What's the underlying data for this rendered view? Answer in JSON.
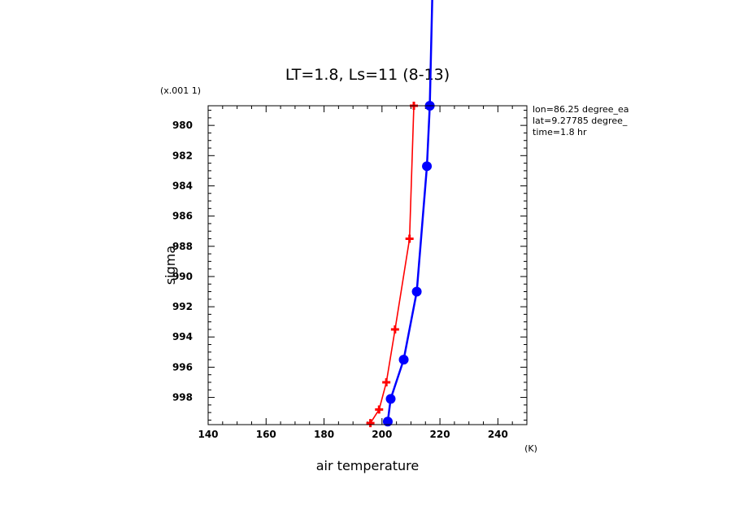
{
  "chart_data": {
    "type": "line",
    "title": "LT=1.8, Ls=11 (8-13)",
    "xlabel": "air temperature",
    "ylabel": "sigma",
    "x_units": "(K)",
    "y_scale_note": "(x.001 1)",
    "xlim": [
      140,
      250
    ],
    "ylim": [
      999.8,
      978.7
    ],
    "x_ticks": [
      140,
      160,
      180,
      200,
      220,
      240
    ],
    "y_ticks": [
      980,
      982,
      984,
      986,
      988,
      990,
      992,
      994,
      996,
      998
    ],
    "annotations": [
      "lon=86.25 degree_ea",
      "lat=9.27785 degree_",
      "time=1.8 hr"
    ],
    "series": [
      {
        "color": "#ff0000",
        "marker": "plus",
        "points": [
          {
            "x": 211.0,
            "y": 978.7
          },
          {
            "x": 209.5,
            "y": 987.5
          },
          {
            "x": 204.5,
            "y": 993.5
          },
          {
            "x": 201.5,
            "y": 997.0
          },
          {
            "x": 199.0,
            "y": 998.8
          },
          {
            "x": 196.0,
            "y": 999.7
          }
        ]
      },
      {
        "color": "#0000ff",
        "marker": "circle",
        "extends_above_plot": true,
        "points": [
          {
            "x": 216.5,
            "y": 978.7
          },
          {
            "x": 215.5,
            "y": 982.7
          },
          {
            "x": 212.0,
            "y": 991.0
          },
          {
            "x": 207.5,
            "y": 995.5
          },
          {
            "x": 203.0,
            "y": 998.1
          },
          {
            "x": 202.0,
            "y": 999.6
          }
        ]
      }
    ]
  }
}
